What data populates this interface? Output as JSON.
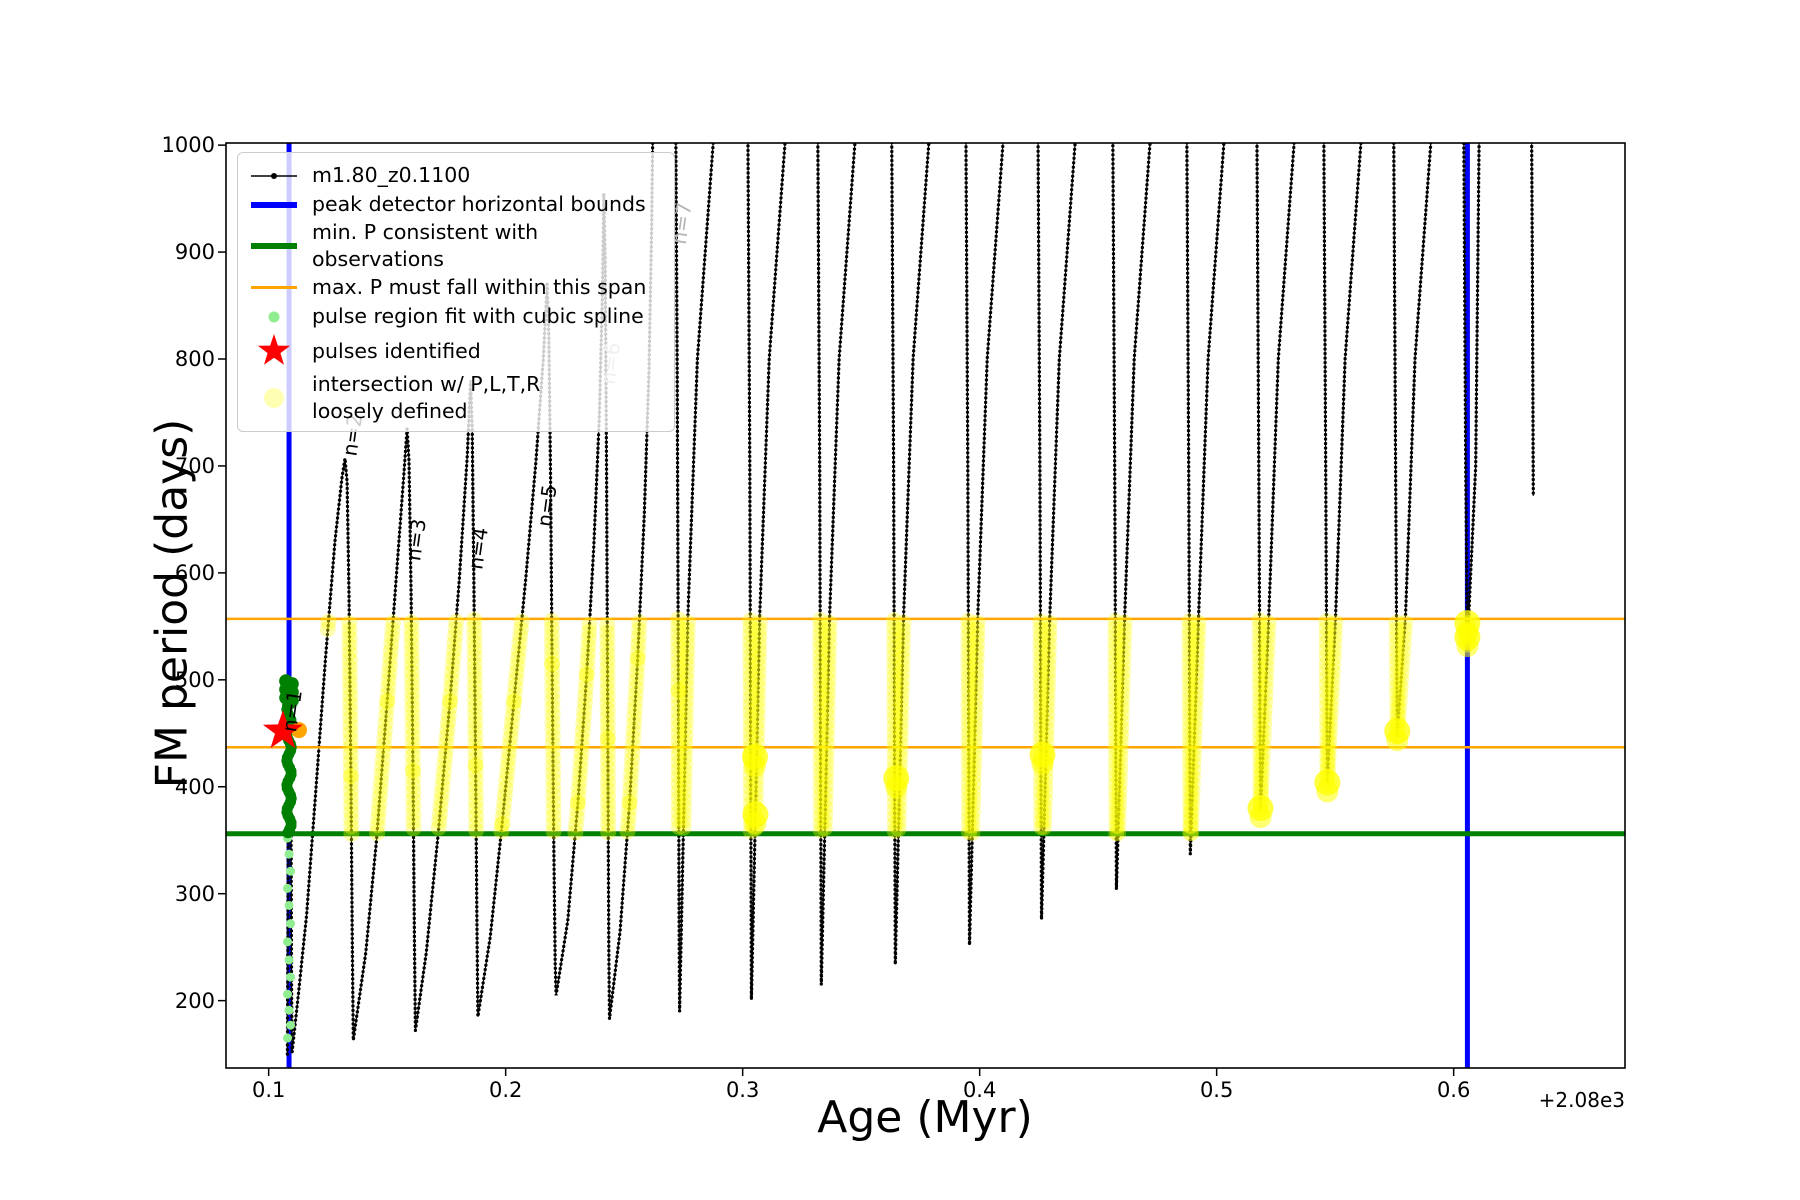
{
  "chart_data": {
    "type": "line",
    "title": "",
    "xlabel": "Age (Myr)",
    "ylabel": "FM period (days)",
    "x_offset_text": "+2.08e3",
    "xlim": [
      0.082,
      0.6723
    ],
    "ylim": [
      137,
      1002
    ],
    "grid": false,
    "legend_position": "upper left",
    "xticks": {
      "values": [
        0.1,
        0.2,
        0.3,
        0.4,
        0.5,
        0.6
      ],
      "labels": [
        "0.1",
        "0.2",
        "0.3",
        "0.4",
        "0.5",
        "0.6"
      ]
    },
    "yticks": {
      "values": [
        200,
        300,
        400,
        500,
        600,
        700,
        800,
        900,
        1000
      ],
      "labels": [
        "200",
        "300",
        "400",
        "500",
        "600",
        "700",
        "800",
        "900",
        "1000"
      ]
    },
    "colors": {
      "series": "#000000",
      "peak_bounds": "#0000ff",
      "min_p": "#008000",
      "max_p": "#ffa500",
      "pulse_region": "#90ee90",
      "pulses": "#ff0000",
      "intersection": "#ffff00",
      "intersection_legend": "#ffffb3",
      "gray_label": "#b5b5b5"
    },
    "series": {
      "name": "m1.80_z0.1100",
      "points": [
        [
          0.1079,
          150
        ],
        [
          0.1081,
          260
        ],
        [
          0.1083,
          390
        ],
        [
          0.1085,
          470
        ],
        [
          0.1086,
          500
        ],
        [
          0.1089,
          492
        ],
        [
          0.1092,
          452
        ],
        [
          0.1095,
          330
        ],
        [
          0.1097,
          210
        ],
        [
          0.1099,
          152
        ],
        [
          0.1125,
          205
        ],
        [
          0.116,
          280
        ],
        [
          0.12,
          400
        ],
        [
          0.124,
          520
        ],
        [
          0.128,
          630
        ],
        [
          0.131,
          690
        ],
        [
          0.1322,
          707
        ],
        [
          0.1331,
          685
        ],
        [
          0.1339,
          580
        ],
        [
          0.1347,
          410
        ],
        [
          0.1353,
          255
        ],
        [
          0.1357,
          163
        ],
        [
          0.141,
          245
        ],
        [
          0.1455,
          350
        ],
        [
          0.15,
          480
        ],
        [
          0.154,
          600
        ],
        [
          0.157,
          690
        ],
        [
          0.1584,
          735
        ],
        [
          0.1592,
          705
        ],
        [
          0.1601,
          580
        ],
        [
          0.1609,
          415
        ],
        [
          0.1615,
          260
        ],
        [
          0.1619,
          172
        ],
        [
          0.1665,
          245
        ],
        [
          0.1715,
          355
        ],
        [
          0.1765,
          480
        ],
        [
          0.1805,
          595
        ],
        [
          0.1838,
          710
        ],
        [
          0.1852,
          780
        ],
        [
          0.1859,
          735
        ],
        [
          0.1866,
          590
        ],
        [
          0.1873,
          420
        ],
        [
          0.1879,
          265
        ],
        [
          0.1883,
          185
        ],
        [
          0.1935,
          260
        ],
        [
          0.1985,
          365
        ],
        [
          0.2035,
          480
        ],
        [
          0.2085,
          595
        ],
        [
          0.2128,
          705
        ],
        [
          0.2159,
          800
        ],
        [
          0.2175,
          870
        ],
        [
          0.2182,
          825
        ],
        [
          0.2189,
          695
        ],
        [
          0.2196,
          515
        ],
        [
          0.2203,
          345
        ],
        [
          0.2209,
          235
        ],
        [
          0.2213,
          205
        ],
        [
          0.2262,
          275
        ],
        [
          0.2305,
          385
        ],
        [
          0.2342,
          505
        ],
        [
          0.2372,
          625
        ],
        [
          0.2395,
          745
        ],
        [
          0.2408,
          860
        ],
        [
          0.2414,
          955
        ],
        [
          0.242,
          895
        ],
        [
          0.2426,
          690
        ],
        [
          0.2431,
          445
        ],
        [
          0.2435,
          250
        ],
        [
          0.2438,
          183
        ],
        [
          0.2483,
          265
        ],
        [
          0.2523,
          385
        ],
        [
          0.2557,
          520
        ],
        [
          0.2585,
          655
        ],
        [
          0.2605,
          790
        ],
        [
          0.2616,
          920
        ],
        [
          0.2621,
          1012
        ],
        [
          0.2718,
          1012
        ],
        [
          0.2724,
          790
        ],
        [
          0.2729,
          490
        ],
        [
          0.2732,
          275
        ],
        [
          0.2734,
          190
        ]
      ],
      "late_dips": [
        [
          0.3037,
          201
        ],
        [
          0.3332,
          215
        ],
        [
          0.3644,
          234
        ],
        [
          0.3957,
          252
        ],
        [
          0.4261,
          276
        ],
        [
          0.4577,
          304
        ],
        [
          0.4889,
          337
        ],
        [
          0.5185,
          378
        ],
        [
          0.5467,
          403
        ],
        [
          0.5762,
          447
        ],
        [
          0.6058,
          533
        ]
      ],
      "final_descent": [
        [
          0.6329,
          1012
        ],
        [
          0.6332,
          900
        ],
        [
          0.6334,
          790
        ],
        [
          0.6336,
          672
        ]
      ]
    },
    "vlines": {
      "label": "peak detector horizontal bounds",
      "x": [
        0.1086,
        0.6058
      ]
    },
    "hlines": {
      "min_p": {
        "label": "min. P consistent with observations",
        "y": 356
      },
      "max_p": {
        "label": "max. P must fall within this span",
        "y": [
          437,
          557
        ]
      }
    },
    "yellow_band": {
      "ymin": 356,
      "ymax": 557,
      "x_start": 0.125
    },
    "yellow_blobs": [
      [
        0.3052,
        428
      ],
      [
        0.3054,
        374
      ],
      [
        0.3648,
        408
      ],
      [
        0.4265,
        430
      ],
      [
        0.5185,
        380
      ],
      [
        0.5467,
        404
      ],
      [
        0.5762,
        452
      ],
      [
        0.6058,
        540
      ],
      [
        0.6058,
        553
      ]
    ],
    "green_cluster": {
      "x": 0.1086,
      "ymin": 357,
      "ymax": 499
    },
    "lightgreen_dots": {
      "x": 0.1086,
      "ys": [
        352,
        337,
        321,
        305,
        289,
        272,
        255,
        238,
        222,
        206,
        191,
        177,
        165
      ]
    },
    "red_star": {
      "x": 0.106,
      "y": 452
    },
    "orange_marker": {
      "x": 0.1128,
      "y": 453
    },
    "pulse_labels": [
      {
        "text": "n=1",
        "x": 0.1128,
        "y": 470,
        "color": "#000000"
      },
      {
        "text": "n=2",
        "x": 0.1382,
        "y": 728,
        "color": "#000000"
      },
      {
        "text": "n=3",
        "x": 0.1651,
        "y": 630,
        "color": "#000000"
      },
      {
        "text": "n=4",
        "x": 0.1913,
        "y": 622,
        "color": "#000000"
      },
      {
        "text": "n=5",
        "x": 0.2203,
        "y": 662,
        "color": "#000000"
      },
      {
        "text": "n=6",
        "x": 0.2472,
        "y": 795,
        "color": "#b5b5b5"
      },
      {
        "text": "n=7",
        "x": 0.2772,
        "y": 926,
        "color": "#b5b5b5"
      }
    ]
  },
  "legend": {
    "entries": [
      {
        "label": "m1.80_z0.1100"
      },
      {
        "label": "peak detector horizontal bounds"
      },
      {
        "label": "min. P consistent with observations"
      },
      {
        "label": "max. P must fall within this span"
      },
      {
        "label": "pulse region fit with cubic spline"
      },
      {
        "label": "pulses identified"
      },
      {
        "label": "intersection w/ P,L,T,R\nloosely defined"
      }
    ]
  }
}
